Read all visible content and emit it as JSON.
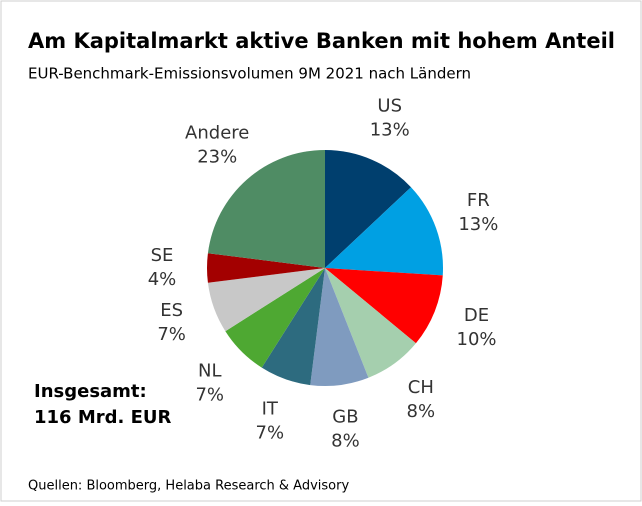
{
  "chart_data": {
    "type": "pie",
    "title": "Am Kapitalmarkt aktive Banken mit hohem Anteil",
    "subtitle": "EUR-Benchmark-Emissionsvolumen 9M 2021 nach Ländern",
    "categories": [
      "US",
      "FR",
      "DE",
      "CH",
      "GB",
      "IT",
      "NL",
      "ES",
      "SE",
      "Andere"
    ],
    "values": [
      13,
      13,
      10,
      8,
      8,
      7,
      7,
      7,
      4,
      23
    ],
    "value_labels": [
      "13%",
      "13%",
      "10%",
      "8%",
      "8%",
      "7%",
      "7%",
      "7%",
      "4%",
      "23%"
    ],
    "colors": [
      "#003f6e",
      "#00a0e3",
      "#ff0000",
      "#a5cfae",
      "#7f9bbf",
      "#2d6b7f",
      "#4ea832",
      "#c8c8c8",
      "#a30000",
      "#4f8c64"
    ],
    "annotation": [
      "Insgesamt:",
      "116 Mrd. EUR"
    ],
    "source": "Quellen: Bloomberg, Helaba Research & Advisory"
  }
}
